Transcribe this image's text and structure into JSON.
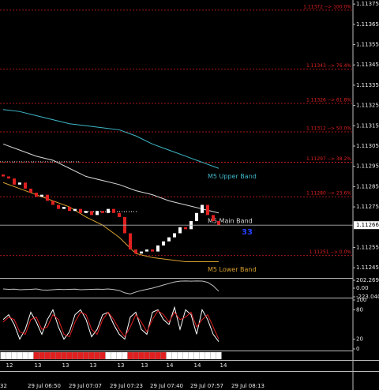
{
  "chart_data": [
    {
      "type": "candlestick",
      "open": [
        1.11291,
        1.1129,
        1.11289,
        1.11286,
        1.11287,
        1.11284,
        1.11282,
        1.1128,
        1.11281,
        1.11278,
        1.11276,
        1.11274,
        1.11275,
        1.11273,
        1.11274,
        1.11272,
        1.11273,
        1.11271,
        1.11273,
        1.11272,
        1.11274,
        1.11272,
        1.1127,
        1.11262,
        1.11254,
        1.11252,
        1.11253,
        1.11254,
        1.11253,
        1.11256,
        1.11258,
        1.1126,
        1.11262,
        1.11265,
        1.11264,
        1.11268,
        1.11272,
        1.11276,
        1.11271,
        1.11268
      ],
      "close": [
        1.1129,
        1.11289,
        1.11286,
        1.11287,
        1.11284,
        1.11282,
        1.1128,
        1.11281,
        1.11278,
        1.11276,
        1.11274,
        1.11275,
        1.11273,
        1.11274,
        1.11272,
        1.11273,
        1.11271,
        1.11273,
        1.11272,
        1.11274,
        1.11272,
        1.1127,
        1.11262,
        1.11254,
        1.11252,
        1.11253,
        1.11254,
        1.11253,
        1.11256,
        1.11258,
        1.1126,
        1.11262,
        1.11265,
        1.11264,
        1.11268,
        1.11272,
        1.11276,
        1.11271,
        1.11268,
        1.11266
      ],
      "up_color": "#ffffff",
      "down_color": "#e02020",
      "ylim": [
        1.1124,
        1.11377
      ],
      "yticks": [
        1.11375,
        1.11365,
        1.11355,
        1.11345,
        1.11335,
        1.11325,
        1.11315,
        1.11305,
        1.11295,
        1.11285,
        1.11275,
        1.11255,
        1.11245
      ],
      "current_price": 1.11266,
      "series": [
        {
          "name": "M5 Upper Band",
          "color": "#3fb8c8",
          "x": [
            0,
            3,
            6,
            9,
            12,
            15,
            18,
            21,
            24,
            27,
            30,
            33,
            36,
            39
          ],
          "values": [
            1.11323,
            1.11322,
            1.1132,
            1.11318,
            1.11316,
            1.11315,
            1.11314,
            1.11313,
            1.1131,
            1.11306,
            1.11303,
            1.113,
            1.11297,
            1.11294
          ]
        },
        {
          "name": "M5 Main Band",
          "color": "#d8d8d8",
          "x": [
            0,
            3,
            6,
            9,
            12,
            15,
            18,
            21,
            24,
            27,
            30,
            33,
            36,
            39
          ],
          "values": [
            1.11306,
            1.11303,
            1.113,
            1.11298,
            1.11294,
            1.1129,
            1.11288,
            1.11286,
            1.11283,
            1.11281,
            1.11278,
            1.11276,
            1.11274,
            1.11272
          ]
        },
        {
          "name": "M5 Lower Band",
          "color": "#d8a030",
          "x": [
            0,
            3,
            6,
            9,
            12,
            15,
            18,
            21,
            24,
            27,
            30,
            33,
            36,
            39
          ],
          "values": [
            1.11287,
            1.11284,
            1.11281,
            1.11278,
            1.11275,
            1.1127,
            1.11266,
            1.1126,
            1.11252,
            1.1125,
            1.11249,
            1.11248,
            1.11248,
            1.11248
          ]
        }
      ],
      "levels": [
        {
          "label": "1.11372 --> 100.0%",
          "value": 1.11372
        },
        {
          "label": "1.11343 --> 76.4%",
          "value": 1.11343
        },
        {
          "label": "1.11326 --> 61.8%",
          "value": 1.11326
        },
        {
          "label": "1.11312 --> 50.0%",
          "value": 1.11312
        },
        {
          "label": "1.11297 --> 38.2%",
          "value": 1.11297
        },
        {
          "label": "1.11280 --> 23.6%",
          "value": 1.1128
        },
        {
          "label": "1.11251 --> 0.0%",
          "value": 1.11251
        }
      ],
      "level_color": "#e02020",
      "annotation": "33",
      "x_labels_top": [
        "12",
        "13",
        "13",
        "13",
        "13",
        "13",
        "14",
        "14",
        "14"
      ],
      "x_labels_bottom": [
        "32",
        "29 Jul 06:50",
        "29 Jul 07:07",
        "29 Jul 07:23",
        "29 Jul 07:40",
        "29 Jul 07:57",
        "29 Jul 08:13"
      ]
    },
    {
      "type": "line",
      "series": [
        {
          "color": "#c0c0c0",
          "values": [
            -20,
            -30,
            -25,
            -40,
            -35,
            -30,
            -20,
            -45,
            -50,
            -40,
            -30,
            -35,
            -30,
            -25,
            -40,
            -35,
            -30,
            -25,
            -30,
            -20,
            -35,
            -60,
            -120,
            -150,
            -100,
            -60,
            -30,
            0,
            40,
            80,
            120,
            160,
            180,
            185,
            180,
            185,
            182,
            150,
            60,
            -80
          ]
        }
      ],
      "ylim": [
        -223.0409,
        202.2694
      ],
      "yticks": [
        202.2694,
        {
          "value": 0,
          "label": "0.00"
        },
        -223.0409
      ]
    },
    {
      "type": "line",
      "series": [
        {
          "color": "#ffffff",
          "values": [
            60,
            70,
            50,
            20,
            40,
            75,
            55,
            30,
            60,
            80,
            45,
            20,
            35,
            70,
            80,
            60,
            25,
            40,
            70,
            75,
            50,
            30,
            20,
            65,
            75,
            40,
            30,
            75,
            80,
            60,
            50,
            85,
            40,
            80,
            70,
            30,
            80,
            60,
            30,
            15
          ]
        },
        {
          "color": "#e02020",
          "values": [
            55,
            65,
            60,
            35,
            30,
            60,
            65,
            40,
            45,
            70,
            60,
            30,
            25,
            55,
            75,
            70,
            40,
            30,
            60,
            75,
            60,
            40,
            25,
            45,
            70,
            55,
            35,
            60,
            78,
            70,
            55,
            75,
            60,
            65,
            75,
            45,
            60,
            70,
            45,
            20
          ]
        }
      ],
      "ylim": [
        0,
        100
      ],
      "yticks": [
        100,
        80,
        20,
        0
      ]
    },
    {
      "type": "state",
      "values": [
        0,
        0,
        0,
        0,
        0,
        0,
        1,
        1,
        1,
        1,
        1,
        1,
        1,
        1,
        1,
        1,
        1,
        1,
        1,
        0,
        0,
        0,
        0,
        1,
        1,
        1,
        1,
        1,
        1,
        1,
        0,
        0,
        0,
        0,
        0,
        0,
        0,
        0,
        0,
        0
      ],
      "on_color": "#e02020",
      "off_color": "#ffffff"
    }
  ]
}
